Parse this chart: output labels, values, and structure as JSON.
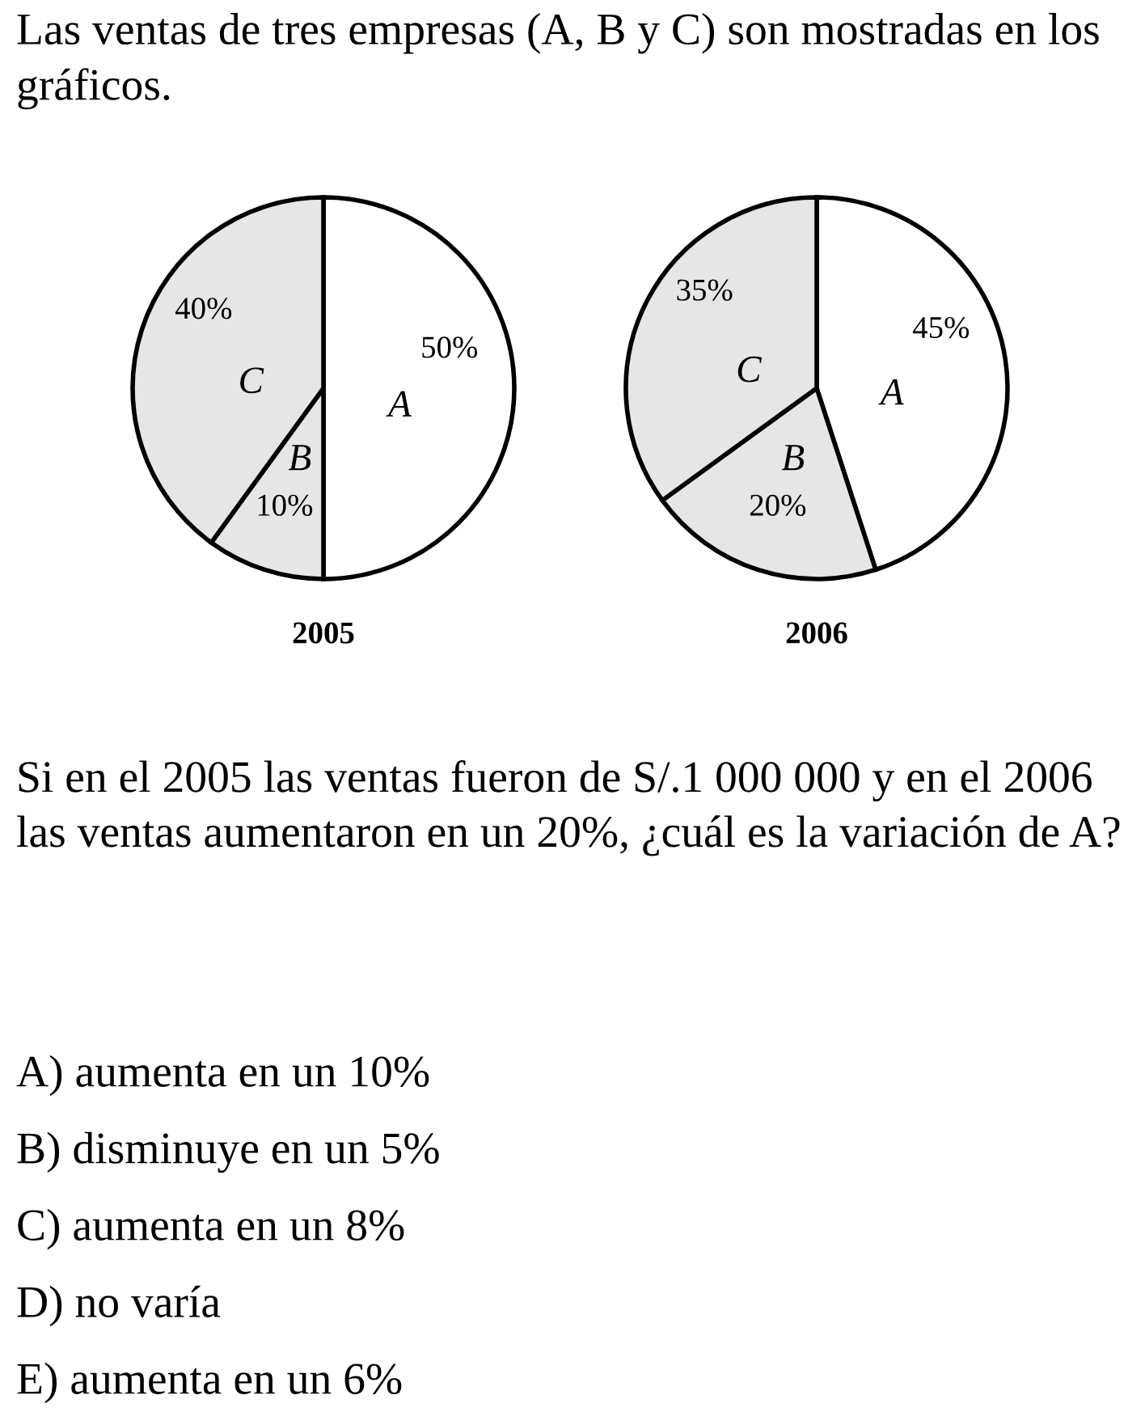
{
  "chart_data": [
    {
      "type": "pie",
      "title": "2005",
      "categories": [
        "A",
        "B",
        "C"
      ],
      "values": [
        50,
        10,
        40
      ],
      "value_labels": [
        "50%",
        "10%",
        "40%"
      ],
      "colors": [
        "#ffffff",
        "#e6e6e6",
        "#e6e6e6"
      ],
      "annotations": [
        "Las ventas de tres empresas (A, B y C) son mostradas en los gráficos."
      ]
    },
    {
      "type": "pie",
      "title": "2006",
      "categories": [
        "A",
        "B",
        "C"
      ],
      "values": [
        45,
        20,
        35
      ],
      "value_labels": [
        "45%",
        "20%",
        "35%"
      ],
      "colors": [
        "#ffffff",
        "#e6e6e6",
        "#e6e6e6"
      ],
      "annotations": [
        "Si en el 2005 las ventas fueron de S/.1 000 000 y en el 2006 las ventas aumentaron en un 20%, ¿cuál es la variación de A?",
        "A) aumenta en un 10%",
        "B) disminuye en un 5%",
        "C) aumenta en un 8%",
        "D) no varía",
        "E) aumenta en un 6%"
      ]
    }
  ]
}
